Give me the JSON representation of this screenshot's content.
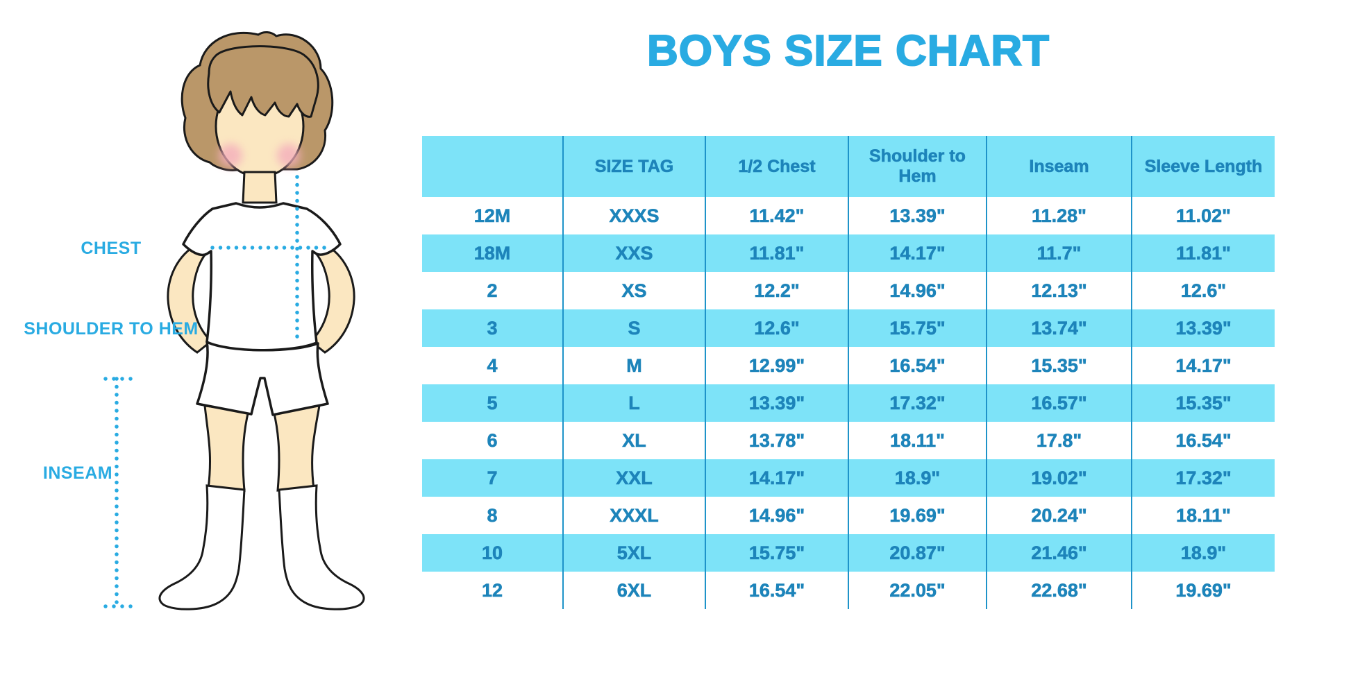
{
  "title": "BOYS SIZE CHART",
  "colors": {
    "accent_blue": "#29abe2",
    "table_text_blue": "#1d84ba",
    "row_fill_cyan": "#7de3f8",
    "skin": "#fbe7c1",
    "hair": "#ba9769",
    "cheek_pink": "#f4aebc"
  },
  "figure_labels": {
    "chest": "CHEST",
    "shoulder_to_hem": "SHOULDER TO HEM",
    "inseam": "INSEAM"
  },
  "chart_data": {
    "type": "table",
    "title": "BOYS SIZE CHART",
    "columns": [
      "",
      "SIZE TAG",
      "1/2 Chest",
      "Shoulder to Hem",
      "Inseam",
      "Sleeve Length"
    ],
    "rows": [
      [
        "12M",
        "XXXS",
        "11.42\"",
        "13.39\"",
        "11.28\"",
        "11.02\""
      ],
      [
        "18M",
        "XXS",
        "11.81\"",
        "14.17\"",
        "11.7\"",
        "11.81\""
      ],
      [
        "2",
        "XS",
        "12.2\"",
        "14.96\"",
        "12.13\"",
        "12.6\""
      ],
      [
        "3",
        "S",
        "12.6\"",
        "15.75\"",
        "13.74\"",
        "13.39\""
      ],
      [
        "4",
        "M",
        "12.99\"",
        "16.54\"",
        "15.35\"",
        "14.17\""
      ],
      [
        "5",
        "L",
        "13.39\"",
        "17.32\"",
        "16.57\"",
        "15.35\""
      ],
      [
        "6",
        "XL",
        "13.78\"",
        "18.11\"",
        "17.8\"",
        "16.54\""
      ],
      [
        "7",
        "XXL",
        "14.17\"",
        "18.9\"",
        "19.02\"",
        "17.32\""
      ],
      [
        "8",
        "XXXL",
        "14.96\"",
        "19.69\"",
        "20.24\"",
        "18.11\""
      ],
      [
        "10",
        "5XL",
        "15.75\"",
        "20.87\"",
        "21.46\"",
        "18.9\""
      ],
      [
        "12",
        "6XL",
        "16.54\"",
        "22.05\"",
        "22.68\"",
        "19.69\""
      ]
    ]
  }
}
